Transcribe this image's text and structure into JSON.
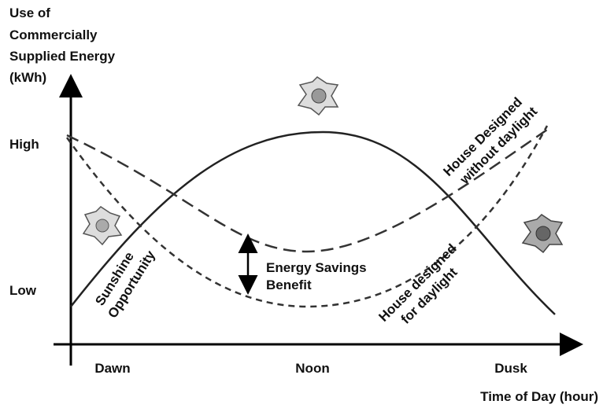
{
  "y_axis": {
    "label": [
      "Use of",
      "Commercially",
      "Supplied Energy",
      "(kWh)"
    ],
    "ticks": [
      "High",
      "Low"
    ]
  },
  "x_axis": {
    "ticks": [
      "Dawn",
      "Noon",
      "Dusk"
    ],
    "label": "Time of Day (hour)"
  },
  "annotations": {
    "sunshine": [
      "Sunshine",
      "Opportunity"
    ],
    "savings": [
      "Energy Savings",
      "Benefit"
    ],
    "without": [
      "House Designed",
      "without daylight"
    ],
    "with": [
      "House designed",
      "for daylight"
    ]
  }
}
